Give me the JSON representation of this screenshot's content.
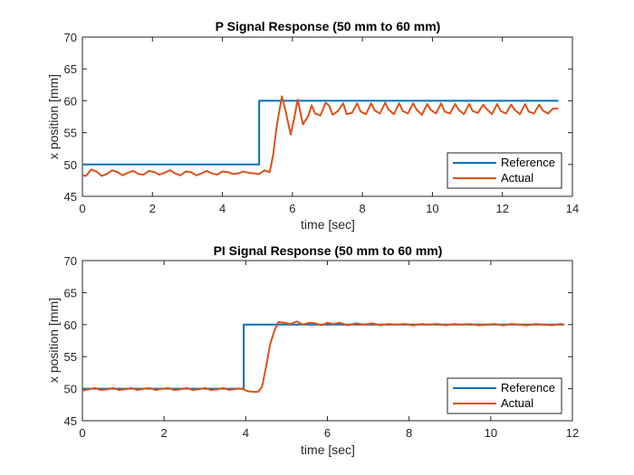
{
  "chart_data": [
    {
      "type": "line",
      "title": "P Signal Response (50 mm to 60 mm)",
      "xlabel": "time [sec]",
      "ylabel": "x position [mm]",
      "xlim": [
        0,
        14
      ],
      "ylim": [
        45,
        70
      ],
      "xticks": [
        0,
        2,
        4,
        6,
        8,
        10,
        12,
        14
      ],
      "yticks": [
        45,
        50,
        55,
        60,
        65,
        70
      ],
      "grid": false,
      "legend_position": "bottom-right",
      "series": [
        {
          "name": "Reference",
          "color": "#0072BD",
          "x": [
            0,
            5.05,
            5.05,
            13.6
          ],
          "y": [
            50,
            50,
            60,
            60
          ]
        },
        {
          "name": "Actual",
          "color": "#D95319",
          "x": [
            0,
            0.1,
            0.25,
            0.4,
            0.55,
            0.7,
            0.85,
            1.0,
            1.15,
            1.3,
            1.45,
            1.6,
            1.75,
            1.9,
            2.05,
            2.2,
            2.35,
            2.5,
            2.65,
            2.8,
            2.95,
            3.1,
            3.25,
            3.4,
            3.55,
            3.7,
            3.85,
            4.0,
            4.15,
            4.3,
            4.45,
            4.6,
            4.75,
            4.9,
            5.05,
            5.2,
            5.35,
            5.45,
            5.55,
            5.7,
            5.8,
            5.95,
            6.05,
            6.15,
            6.3,
            6.45,
            6.55,
            6.65,
            6.8,
            6.95,
            7.05,
            7.15,
            7.3,
            7.45,
            7.55,
            7.7,
            7.85,
            7.95,
            8.1,
            8.25,
            8.35,
            8.5,
            8.65,
            8.75,
            8.9,
            9.05,
            9.15,
            9.3,
            9.45,
            9.55,
            9.7,
            9.85,
            9.95,
            10.1,
            10.25,
            10.35,
            10.5,
            10.65,
            10.75,
            10.9,
            11.05,
            11.15,
            11.3,
            11.45,
            11.55,
            11.7,
            11.85,
            11.95,
            12.1,
            12.25,
            12.35,
            12.5,
            12.65,
            12.75,
            12.9,
            13.05,
            13.15,
            13.3,
            13.45,
            13.6
          ],
          "y": [
            48.3,
            48.2,
            49.2,
            48.9,
            48.2,
            48.5,
            49.1,
            48.8,
            48.3,
            48.7,
            49.0,
            48.5,
            48.4,
            49.0,
            48.8,
            48.4,
            48.7,
            49.1,
            48.6,
            48.3,
            48.9,
            48.8,
            48.3,
            48.6,
            49.0,
            48.6,
            48.4,
            48.9,
            48.8,
            48.5,
            48.6,
            48.9,
            48.7,
            48.6,
            48.5,
            49.1,
            48.8,
            51.5,
            56.0,
            60.7,
            58.5,
            54.7,
            57.2,
            60.2,
            56.3,
            57.6,
            59.3,
            58.0,
            57.7,
            59.7,
            59.2,
            57.8,
            58.4,
            59.6,
            57.9,
            58.1,
            59.6,
            58.3,
            57.9,
            59.6,
            58.5,
            58.0,
            59.7,
            58.6,
            57.9,
            59.6,
            58.4,
            58.0,
            59.6,
            58.6,
            57.8,
            59.5,
            58.6,
            58.0,
            59.6,
            58.3,
            58.0,
            59.5,
            58.6,
            57.9,
            59.5,
            58.4,
            58.1,
            59.4,
            58.7,
            57.9,
            59.5,
            58.4,
            58.0,
            59.4,
            58.6,
            57.9,
            59.5,
            58.3,
            58.0,
            59.4,
            58.5,
            58.0,
            58.8,
            58.8
          ]
        }
      ]
    },
    {
      "type": "line",
      "title": "PI Signal Response (50 mm to 60 mm)",
      "xlabel": "time [sec]",
      "ylabel": "x position [mm]",
      "xlim": [
        0,
        12
      ],
      "ylim": [
        45,
        70
      ],
      "xticks": [
        0,
        2,
        4,
        6,
        8,
        10,
        12
      ],
      "yticks": [
        45,
        50,
        55,
        60,
        65,
        70
      ],
      "grid": false,
      "legend_position": "bottom-right",
      "series": [
        {
          "name": "Reference",
          "color": "#0072BD",
          "x": [
            0,
            3.95,
            3.95,
            11.8
          ],
          "y": [
            50,
            50,
            60,
            60
          ]
        },
        {
          "name": "Actual",
          "color": "#D95319",
          "x": [
            0,
            0.15,
            0.3,
            0.45,
            0.6,
            0.75,
            0.9,
            1.05,
            1.2,
            1.35,
            1.5,
            1.65,
            1.8,
            1.95,
            2.1,
            2.25,
            2.4,
            2.55,
            2.7,
            2.85,
            3.0,
            3.15,
            3.3,
            3.45,
            3.6,
            3.75,
            3.9,
            4.05,
            4.2,
            4.3,
            4.4,
            4.5,
            4.6,
            4.7,
            4.8,
            4.95,
            5.1,
            5.25,
            5.4,
            5.55,
            5.7,
            5.85,
            6.0,
            6.15,
            6.3,
            6.5,
            6.7,
            6.9,
            7.1,
            7.3,
            7.5,
            7.7,
            7.9,
            8.1,
            8.3,
            8.5,
            8.7,
            8.9,
            9.1,
            9.3,
            9.5,
            9.7,
            9.9,
            10.1,
            10.3,
            10.5,
            10.7,
            10.9,
            11.1,
            11.3,
            11.5,
            11.7,
            11.8
          ],
          "y": [
            49.7,
            49.9,
            50.1,
            49.8,
            49.9,
            50.1,
            49.8,
            49.9,
            50.1,
            49.8,
            50.0,
            50.1,
            49.8,
            50.0,
            50.1,
            49.8,
            49.9,
            50.1,
            49.8,
            49.9,
            50.1,
            49.8,
            49.9,
            50.1,
            49.8,
            50.0,
            50.0,
            49.6,
            49.5,
            49.5,
            50.3,
            53.5,
            57.0,
            59.0,
            60.4,
            60.3,
            60.1,
            60.5,
            60.0,
            60.3,
            60.2,
            59.9,
            60.3,
            60.1,
            60.3,
            59.9,
            60.2,
            60.0,
            60.2,
            59.9,
            60.1,
            60.0,
            60.1,
            59.9,
            60.1,
            60.0,
            60.1,
            59.9,
            60.1,
            60.0,
            60.1,
            59.9,
            60.0,
            60.1,
            59.9,
            60.1,
            60.0,
            59.9,
            60.1,
            60.0,
            59.9,
            60.1,
            60.0
          ]
        }
      ]
    }
  ]
}
